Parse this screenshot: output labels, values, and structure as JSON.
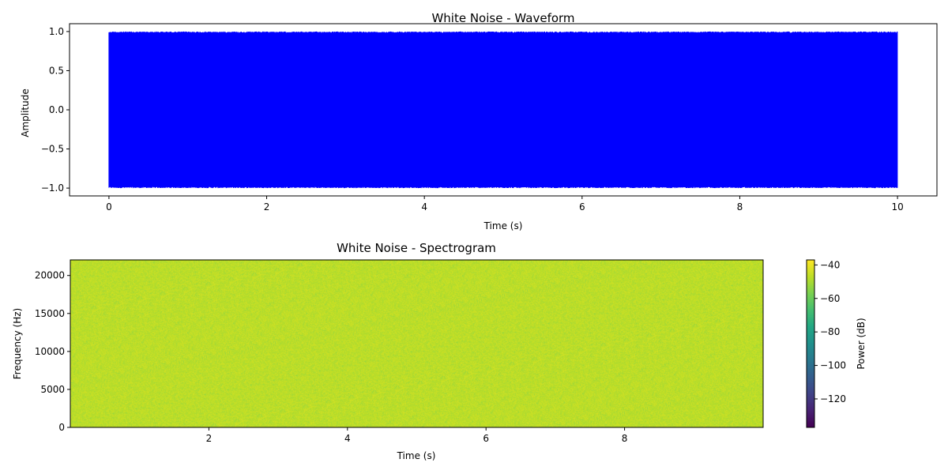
{
  "chart_data": [
    {
      "type": "line",
      "title": "White Noise - Waveform",
      "xlabel": "Time (s)",
      "ylabel": "Amplitude",
      "xlim": [
        -0.5,
        10.5
      ],
      "ylim": [
        -1.1,
        1.1
      ],
      "x_ticks": [
        0,
        2,
        4,
        6,
        8,
        10
      ],
      "y_ticks": [
        -1.0,
        -0.5,
        0.0,
        0.5,
        1.0
      ],
      "x_tick_labels": [
        "0",
        "2",
        "4",
        "6",
        "8",
        "10"
      ],
      "y_tick_labels": [
        "−1.0",
        "−0.5",
        "0.0",
        "0.5",
        "1.0"
      ],
      "series": [
        {
          "color": "#0000ff",
          "x_range": [
            0,
            10
          ],
          "amplitude_range": [
            -1.0,
            1.0
          ]
        }
      ],
      "grid": false
    },
    {
      "type": "heatmap",
      "title": "White Noise - Spectrogram",
      "xlabel": "Time (s)",
      "ylabel": "Frequency (Hz)",
      "xlim": [
        0.0,
        10.0
      ],
      "ylim": [
        0,
        22050
      ],
      "x_ticks": [
        2,
        4,
        6,
        8
      ],
      "y_ticks": [
        0,
        5000,
        10000,
        15000,
        20000
      ],
      "x_tick_labels": [
        "2",
        "4",
        "6",
        "8"
      ],
      "y_tick_labels": [
        "0",
        "5000",
        "10000",
        "15000",
        "20000"
      ],
      "colormap": "viridis",
      "typical_power_db": -47,
      "colorbar": {
        "label": "Power (dB)",
        "range": [
          -137,
          -37
        ],
        "ticks": [
          -120,
          -100,
          -80,
          -60,
          -40
        ],
        "tick_labels": [
          "−120",
          "−100",
          "−80",
          "−60",
          "−40"
        ]
      }
    }
  ]
}
